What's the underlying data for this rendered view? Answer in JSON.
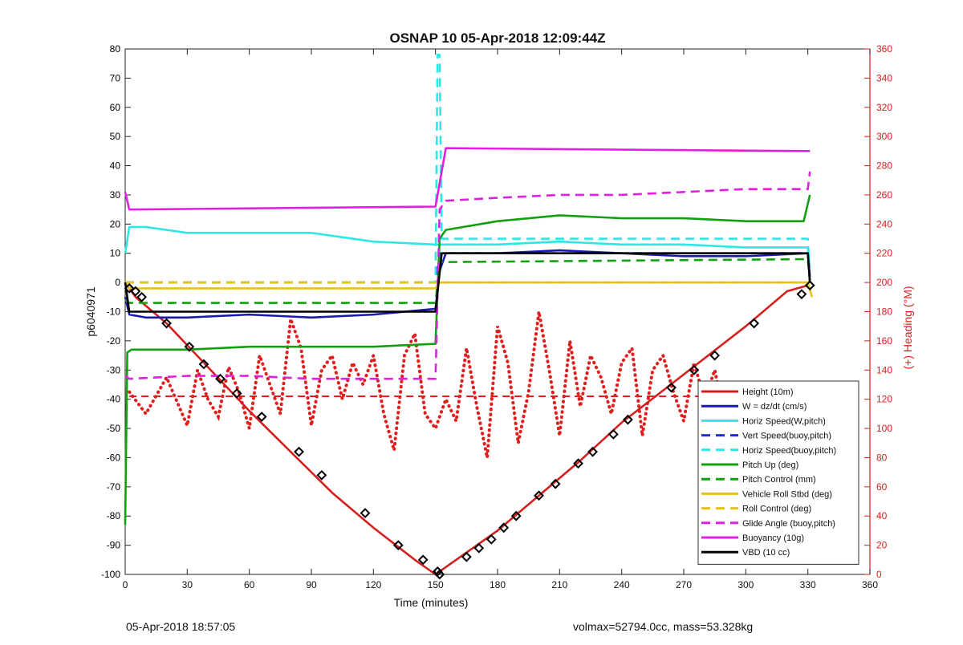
{
  "footer": {
    "timestamp": "05-Apr-2018 18:57:05",
    "stats": "volmax=52794.0cc, mass=53.328kg"
  },
  "chart_data": {
    "type": "line",
    "title": "OSNAP 10 05-Apr-2018 12:09:44Z",
    "xlabel": "Time (minutes)",
    "ylabel": "p6040971",
    "y2label": "(+) Heading (°M)",
    "xlim": [
      0,
      360
    ],
    "ylim": [
      -100,
      80
    ],
    "y2lim": [
      0,
      360
    ],
    "xticks": [
      0,
      30,
      60,
      90,
      120,
      150,
      180,
      210,
      240,
      270,
      300,
      330,
      360
    ],
    "yticks": [
      -100,
      -90,
      -80,
      -70,
      -60,
      -50,
      -40,
      -30,
      -20,
      -10,
      0,
      10,
      20,
      30,
      40,
      50,
      60,
      70,
      80
    ],
    "y2ticks": [
      0,
      20,
      40,
      60,
      80,
      100,
      120,
      140,
      160,
      180,
      200,
      220,
      240,
      260,
      280,
      300,
      320,
      340,
      360
    ],
    "grid": false,
    "legend_position": "bottom-right",
    "colors": {
      "axis_left": "#000000",
      "axis_right": "#d81e1e",
      "height": "#d41f1f",
      "w": "#1a1aaa",
      "horiz_speed": "#2ee6e6",
      "vert_speed": "#1f2fd0",
      "pitch": "#10a010",
      "roll": "#e6c21a",
      "glide": "#e020e0",
      "vbd": "#000000",
      "heading": "#e01e1e"
    },
    "series": [
      {
        "name": "Height (10m)",
        "style": "solid",
        "color": "#d41f1f",
        "x": [
          0,
          5,
          20,
          40,
          60,
          80,
          100,
          120,
          140,
          150,
          160,
          180,
          200,
          220,
          240,
          260,
          280,
          300,
          320,
          330
        ],
        "y": [
          0,
          -5,
          -14,
          -29,
          -44,
          -58,
          -72,
          -84,
          -95,
          -100,
          -95,
          -85,
          -73,
          -61,
          -48,
          -37,
          -26,
          -15,
          -3,
          -1
        ]
      },
      {
        "name": "W = dz/dt (cm/s)",
        "style": "solid",
        "color": "#1a1aaa",
        "x": [
          0,
          2,
          10,
          30,
          60,
          90,
          120,
          150,
          152,
          155,
          180,
          210,
          240,
          270,
          300,
          330,
          331
        ],
        "y": [
          -5,
          -11,
          -12,
          -12,
          -11,
          -12,
          -11,
          -9,
          4,
          10,
          10,
          11,
          10,
          9,
          9,
          10,
          2
        ]
      },
      {
        "name": "Horiz Speed(W,pitch)",
        "style": "solid",
        "color": "#2ee6e6",
        "x": [
          0,
          2,
          10,
          30,
          60,
          90,
          120,
          150,
          152,
          155,
          180,
          210,
          240,
          270,
          300,
          330,
          331
        ],
        "y": [
          10,
          19,
          19,
          17,
          17,
          17,
          14,
          13,
          13,
          13,
          13,
          14,
          13,
          13,
          12,
          12,
          5
        ]
      },
      {
        "name": "Vert Speed(buoy,pitch)",
        "style": "dashed",
        "color": "#1f2fd0",
        "x": [
          0,
          2,
          150,
          152,
          155,
          330,
          331
        ],
        "y": [
          0,
          0,
          0,
          10,
          10,
          10,
          0
        ]
      },
      {
        "name": "Horiz Speed(buoy,pitch)",
        "style": "dashed",
        "color": "#2ee6e6",
        "x": [
          0,
          2,
          150,
          151,
          152,
          153,
          155,
          330,
          331
        ],
        "y": [
          0,
          0,
          0,
          78,
          78,
          15,
          15,
          15,
          0
        ]
      },
      {
        "name": "Pitch Up (deg)",
        "style": "solid",
        "color": "#10a010",
        "x": [
          0,
          1,
          3,
          10,
          30,
          60,
          90,
          120,
          150,
          152,
          155,
          180,
          210,
          240,
          270,
          300,
          328,
          331
        ],
        "y": [
          -83,
          -24,
          -23,
          -23,
          -23,
          -22,
          -22,
          -22,
          -21,
          15,
          18,
          21,
          23,
          22,
          22,
          21,
          21,
          30
        ]
      },
      {
        "name": "Pitch Control (mm)",
        "style": "dashed",
        "color": "#10a010",
        "x": [
          0,
          2,
          150,
          152,
          155,
          330,
          331
        ],
        "y": [
          -6,
          -7,
          -7,
          7,
          7,
          8,
          0
        ]
      },
      {
        "name": "Vehicle Roll Stbd (deg)",
        "style": "solid",
        "color": "#e6c21a",
        "x": [
          0,
          2,
          150,
          152,
          155,
          330,
          332
        ],
        "y": [
          0,
          -2,
          -2,
          0,
          0,
          0,
          -5
        ]
      },
      {
        "name": "Roll Control (deg)",
        "style": "dashed",
        "color": "#e6c21a",
        "x": [
          0,
          2,
          150,
          152,
          155,
          330,
          331
        ],
        "y": [
          0,
          0,
          0,
          0,
          0,
          0,
          0
        ]
      },
      {
        "name": "Glide Angle (buoy,pitch)",
        "style": "dashed",
        "color": "#e020e0",
        "x": [
          0,
          2,
          30,
          60,
          90,
          120,
          150,
          152,
          155,
          180,
          210,
          240,
          270,
          300,
          330,
          331
        ],
        "y": [
          -32,
          -33,
          -32,
          -32,
          -33,
          -33,
          -33,
          25,
          28,
          29,
          30,
          30,
          31,
          32,
          32,
          38
        ]
      },
      {
        "name": "Buoyancy (10g)",
        "style": "solid",
        "color": "#e020e0",
        "x": [
          0,
          2,
          150,
          155,
          330,
          331
        ],
        "y": [
          31,
          25,
          26,
          46,
          45,
          45
        ]
      },
      {
        "name": "VBD (10 cc)",
        "style": "solid",
        "color": "#000000",
        "x": [
          0,
          2,
          150,
          153,
          155,
          330,
          331
        ],
        "y": [
          0,
          -10,
          -10,
          10,
          10,
          10,
          0
        ]
      }
    ],
    "heading_series": {
      "axis": "right",
      "style": "dotted",
      "color": "#e01e1e",
      "reference": 122,
      "x": [
        2,
        10,
        20,
        30,
        35,
        40,
        45,
        50,
        55,
        60,
        65,
        70,
        75,
        80,
        85,
        90,
        95,
        100,
        105,
        110,
        115,
        120,
        125,
        130,
        135,
        140,
        145,
        150,
        155,
        160,
        165,
        170,
        175,
        180,
        185,
        190,
        195,
        200,
        205,
        210,
        215,
        220,
        225,
        230,
        235,
        240,
        245,
        250,
        255,
        260,
        265,
        270,
        275,
        280,
        285,
        290,
        295,
        300,
        305,
        310,
        315,
        320,
        325,
        330
      ],
      "y": [
        125,
        110,
        135,
        102,
        140,
        120,
        108,
        142,
        125,
        100,
        150,
        130,
        110,
        175,
        155,
        102,
        140,
        150,
        120,
        145,
        130,
        150,
        110,
        85,
        150,
        165,
        110,
        100,
        120,
        105,
        155,
        115,
        80,
        170,
        145,
        90,
        125,
        180,
        140,
        95,
        160,
        115,
        150,
        135,
        110,
        145,
        155,
        95,
        140,
        150,
        125,
        105,
        145,
        120,
        140,
        105,
        130,
        125,
        115,
        120,
        110,
        100,
        95,
        125
      ]
    },
    "markers": {
      "series": "Height (10m)",
      "symbol": "diamond",
      "x": [
        2,
        5,
        8,
        20,
        31,
        38,
        46,
        54,
        66,
        84,
        95,
        116,
        132,
        144,
        151,
        152,
        165,
        171,
        177,
        183,
        189,
        200,
        208,
        219,
        226,
        236,
        243,
        264,
        275,
        285,
        304,
        327,
        331
      ],
      "y": [
        -2,
        -3,
        -5,
        -14,
        -22,
        -28,
        -33,
        -38,
        -46,
        -58,
        -66,
        -79,
        -90,
        -95,
        -99,
        -100,
        -94,
        -91,
        -88,
        -84,
        -80,
        -73,
        -69,
        -62,
        -58,
        -52,
        -47,
        -36,
        -30,
        -25,
        -14,
        -4,
        -1
      ]
    }
  }
}
